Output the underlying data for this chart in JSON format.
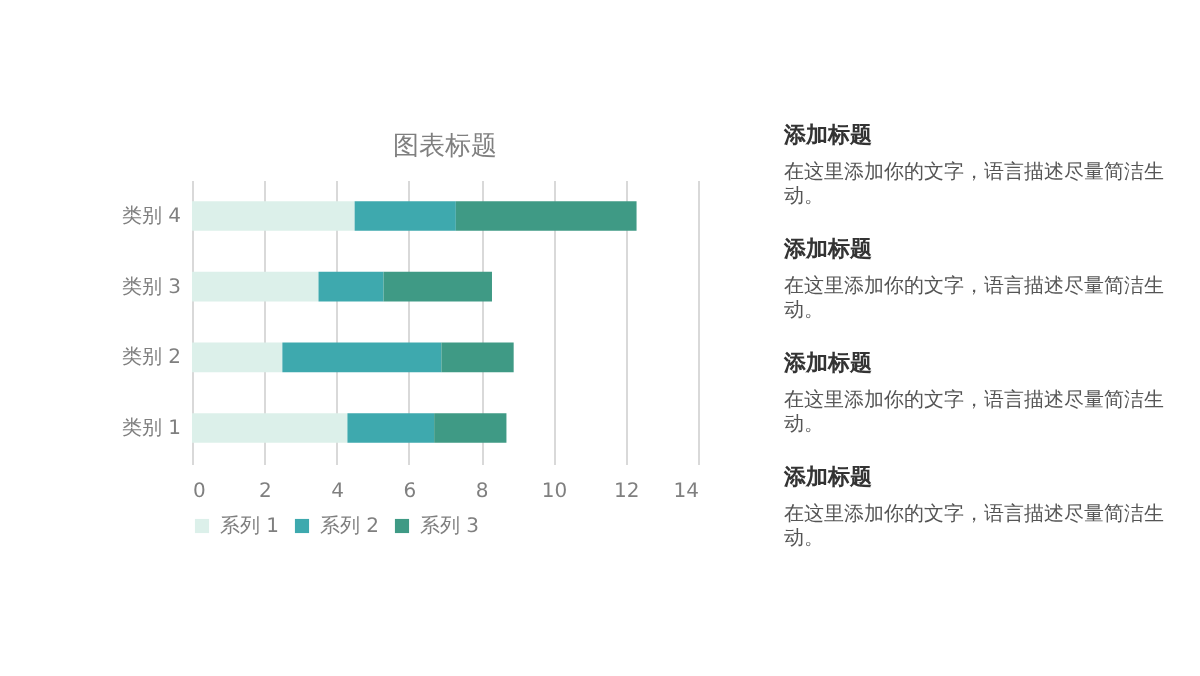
{
  "chart_data": [
    {
      "type": "bar",
      "orientation": "horizontal",
      "stacked": true,
      "title": "图表标题",
      "categories": [
        "类别 4",
        "类别 3",
        "类别 2",
        "类别 1"
      ],
      "series": [
        {
          "name": "系列 1",
          "color": "#dcf0ea",
          "values": [
            4.5,
            3.5,
            2.5,
            4.3
          ]
        },
        {
          "name": "系列 2",
          "color": "#3ea9ae",
          "values": [
            2.8,
            1.8,
            4.4,
            2.4
          ]
        },
        {
          "name": "系列 3",
          "color": "#3f9a85",
          "values": [
            5,
            3,
            2,
            2
          ]
        }
      ],
      "xlim": [
        0,
        14
      ],
      "xticks": [
        0,
        2,
        4,
        6,
        8,
        10,
        12,
        14
      ],
      "grid": "x",
      "legend": "bottom"
    },
    {
      "type": "other",
      "annotations": [
        "添加标题",
        "在这里添加你的文字，语言描述尽量简洁生动。",
        "添加标题",
        "在这里添加你的文字，语言描述尽量简洁生动。",
        "添加标题",
        "在这里添加你的文字，语言描述尽量简洁生动。",
        "添加标题",
        "在这里添加你的文字，语言描述尽量简洁生动。"
      ]
    }
  ]
}
